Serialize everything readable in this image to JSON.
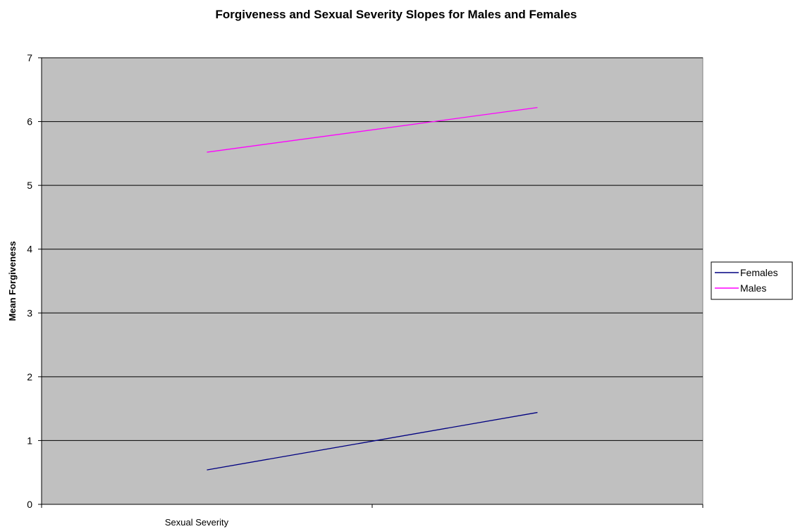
{
  "chart_data": {
    "type": "line",
    "title": "Forgiveness and Sexual Severity Slopes for Males and Females",
    "xlabel": "Sexual Severity",
    "ylabel": "Mean Forgiveness",
    "x_positions": [
      0.25,
      0.75
    ],
    "xlim": [
      0,
      1
    ],
    "ylim": [
      0,
      7
    ],
    "yticks": [
      "0",
      "1",
      "2",
      "3",
      "4",
      "5",
      "6",
      "7"
    ],
    "grid": true,
    "legend_position": "right",
    "plot_background": "#c0c0c0",
    "series": [
      {
        "name": "Females",
        "color": "#000080",
        "values": [
          0.54,
          1.44
        ]
      },
      {
        "name": "Males",
        "color": "#ff00ff",
        "values": [
          5.52,
          6.22
        ]
      }
    ]
  }
}
